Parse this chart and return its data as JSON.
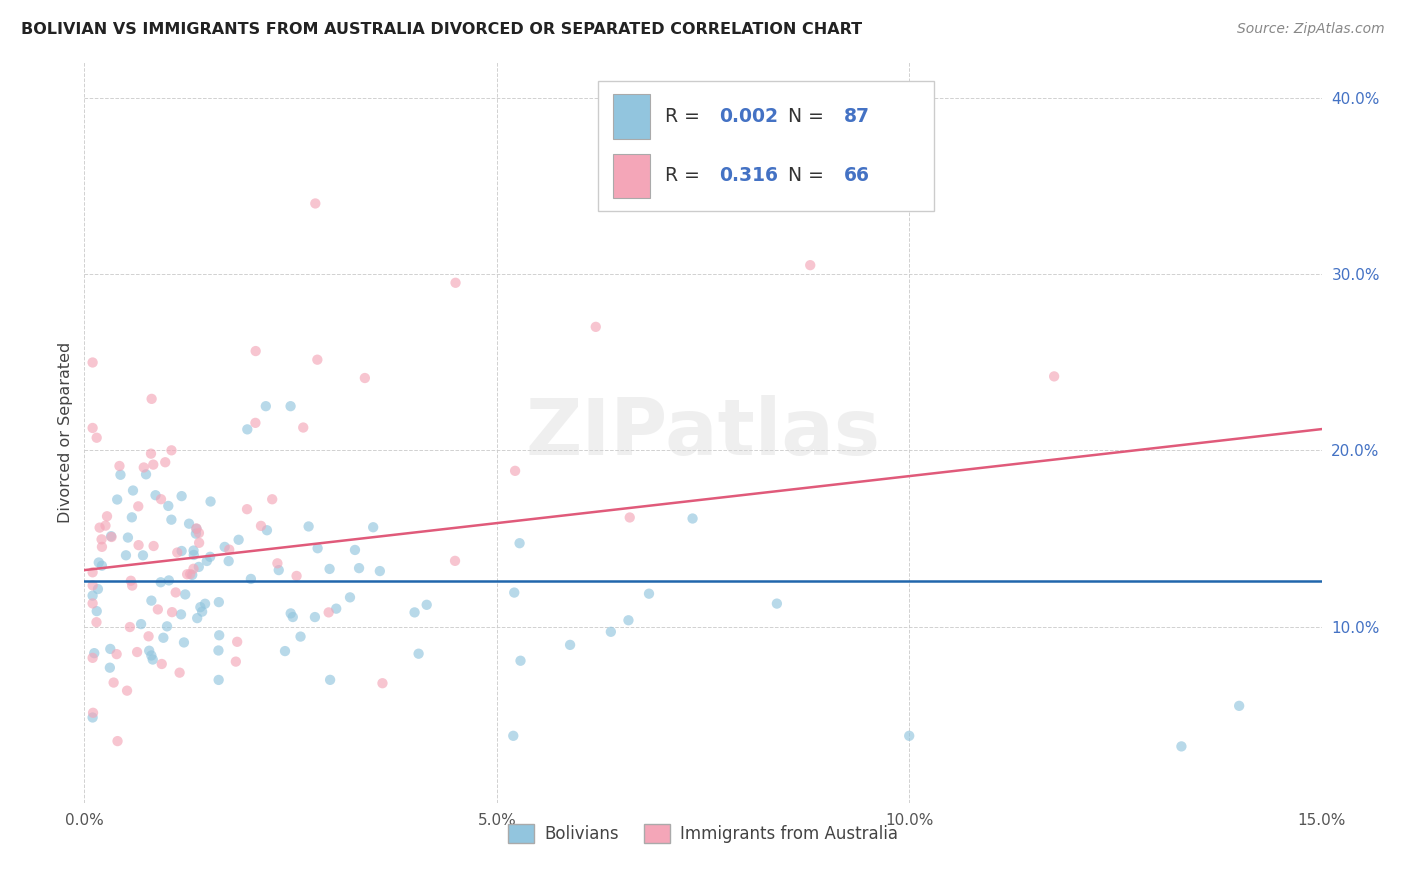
{
  "title": "BOLIVIAN VS IMMIGRANTS FROM AUSTRALIA DIVORCED OR SEPARATED CORRELATION CHART",
  "source": "Source: ZipAtlas.com",
  "ylabel": "Divorced or Separated",
  "xlim": [
    0.0,
    0.15
  ],
  "ylim": [
    0.0,
    0.42
  ],
  "xticks": [
    0.0,
    0.05,
    0.1,
    0.15
  ],
  "yticks": [
    0.1,
    0.2,
    0.3,
    0.4
  ],
  "blue_R": "0.002",
  "blue_N": "87",
  "pink_R": "0.316",
  "pink_N": "66",
  "blue_color": "#92c5de",
  "pink_color": "#f4a6b8",
  "blue_line_color": "#2166ac",
  "pink_line_color": "#e05a7a",
  "marker_size": 55,
  "marker_alpha": 0.65,
  "watermark": "ZIPatlas",
  "legend_label_blue": "Bolivians",
  "legend_label_pink": "Immigrants from Australia",
  "tick_color_y": "#4472c4",
  "tick_color_x": "#555555",
  "pink_line_y0": 0.132,
  "pink_line_y1": 0.212,
  "blue_line_y0": 0.126,
  "blue_line_y1": 0.126
}
